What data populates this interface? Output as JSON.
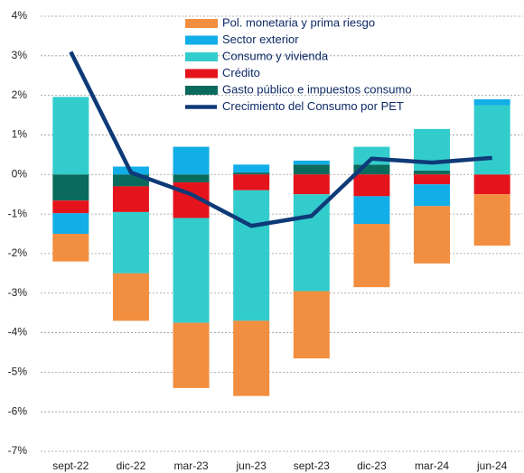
{
  "chart_data": {
    "type": "bar",
    "categories": [
      "sept-22",
      "dic-22",
      "mar-23",
      "jun-23",
      "sept-23",
      "dic-23",
      "mar-24",
      "jun-24"
    ],
    "series": [
      {
        "name": "Pol. monetaria y prima riesgo",
        "color": "#f28e3f",
        "values": [
          -0.7,
          -1.2,
          -1.65,
          -1.9,
          -1.7,
          -1.6,
          -1.45,
          -1.3
        ]
      },
      {
        "name": "Sector exterior",
        "color": "#12aee8",
        "values": [
          -0.52,
          0.2,
          0.7,
          0.2,
          0.1,
          -0.7,
          -0.55,
          0.15
        ]
      },
      {
        "name": "Consumo y vivienda",
        "color": "#33cccc",
        "values": [
          1.96,
          -1.55,
          -2.65,
          -3.3,
          -2.45,
          0.45,
          1.05,
          1.75
        ]
      },
      {
        "name": "Crédito",
        "color": "#e5131b",
        "values": [
          -0.32,
          -0.65,
          -0.9,
          -0.4,
          -0.5,
          -0.55,
          -0.25,
          -0.5
        ]
      },
      {
        "name": "Gasto público e impuestos consumo",
        "color": "#0a6b5c",
        "values": [
          -0.66,
          -0.3,
          -0.2,
          0.05,
          0.25,
          0.25,
          0.1,
          0
        ]
      },
      {
        "name": "Crecimiento del Consumo por PET",
        "color": "#0e3a78",
        "type": "line",
        "values": [
          3.1,
          0.05,
          -0.5,
          -1.3,
          -1.05,
          0.4,
          0.3,
          0.42
        ]
      }
    ],
    "ylim": [
      -7,
      4
    ],
    "yticks": [
      {
        "value": -7,
        "label": "-7%"
      },
      {
        "value": -6,
        "label": "-6%"
      },
      {
        "value": -5,
        "label": "-5%"
      },
      {
        "value": -4,
        "label": "-4%"
      },
      {
        "value": -3,
        "label": "-3%"
      },
      {
        "value": -2,
        "label": "-2%"
      },
      {
        "value": -1,
        "label": "-1%"
      },
      {
        "value": 0,
        "label": "0%"
      },
      {
        "value": 1,
        "label": "1%"
      },
      {
        "value": 2,
        "label": "2%"
      },
      {
        "value": 3,
        "label": "3%"
      },
      {
        "value": 4,
        "label": "4%"
      }
    ],
    "grid": true
  }
}
